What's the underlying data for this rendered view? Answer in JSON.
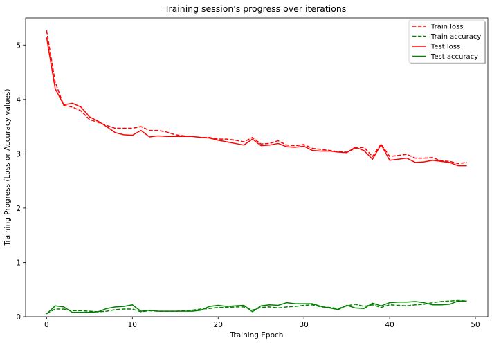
{
  "chart_data": {
    "type": "line",
    "title": "Training session's progress over iterations",
    "xlabel": "Training Epoch",
    "ylabel": "Training Progress (Loss or Accuracy values)",
    "xlim": [
      -2.45,
      51.45
    ],
    "ylim": [
      0,
      5.5
    ],
    "xticks": [
      0,
      10,
      20,
      30,
      40,
      50
    ],
    "yticks": [
      0,
      1,
      2,
      3,
      4,
      5
    ],
    "legend_position": "top-right",
    "x": [
      0,
      1,
      2,
      3,
      4,
      5,
      6,
      7,
      8,
      9,
      10,
      11,
      12,
      13,
      14,
      15,
      16,
      17,
      18,
      19,
      20,
      21,
      22,
      23,
      24,
      25,
      26,
      27,
      28,
      29,
      30,
      31,
      32,
      33,
      34,
      35,
      36,
      37,
      38,
      39,
      40,
      41,
      42,
      43,
      44,
      45,
      46,
      47,
      48,
      49
    ],
    "series": [
      {
        "name": "Train loss",
        "color": "#ff0000",
        "style": "dashed",
        "values": [
          5.27,
          4.32,
          3.89,
          3.86,
          3.79,
          3.63,
          3.58,
          3.52,
          3.47,
          3.47,
          3.47,
          3.5,
          3.43,
          3.43,
          3.4,
          3.35,
          3.33,
          3.32,
          3.3,
          3.3,
          3.27,
          3.27,
          3.25,
          3.22,
          3.3,
          3.18,
          3.19,
          3.24,
          3.16,
          3.15,
          3.17,
          3.1,
          3.08,
          3.06,
          3.04,
          3.03,
          3.1,
          3.12,
          2.95,
          3.18,
          2.95,
          2.97,
          2.99,
          2.92,
          2.92,
          2.93,
          2.87,
          2.86,
          2.82,
          2.84
        ]
      },
      {
        "name": "Train accuracy",
        "color": "#008000",
        "style": "dashed",
        "values": [
          0.06,
          0.14,
          0.14,
          0.11,
          0.11,
          0.1,
          0.09,
          0.1,
          0.13,
          0.14,
          0.14,
          0.09,
          0.11,
          0.1,
          0.1,
          0.1,
          0.11,
          0.12,
          0.14,
          0.15,
          0.17,
          0.17,
          0.18,
          0.18,
          0.12,
          0.17,
          0.18,
          0.16,
          0.18,
          0.19,
          0.21,
          0.22,
          0.18,
          0.17,
          0.15,
          0.2,
          0.23,
          0.19,
          0.22,
          0.17,
          0.22,
          0.21,
          0.2,
          0.22,
          0.23,
          0.26,
          0.28,
          0.29,
          0.3,
          0.29
        ]
      },
      {
        "name": "Test loss",
        "color": "#ff0000",
        "style": "solid",
        "values": [
          5.14,
          4.2,
          3.9,
          3.93,
          3.86,
          3.68,
          3.6,
          3.5,
          3.39,
          3.35,
          3.34,
          3.43,
          3.31,
          3.33,
          3.32,
          3.32,
          3.32,
          3.32,
          3.3,
          3.29,
          3.25,
          3.22,
          3.19,
          3.16,
          3.27,
          3.15,
          3.16,
          3.19,
          3.13,
          3.12,
          3.14,
          3.06,
          3.05,
          3.05,
          3.03,
          3.02,
          3.12,
          3.06,
          2.9,
          3.17,
          2.88,
          2.9,
          2.92,
          2.84,
          2.85,
          2.88,
          2.86,
          2.84,
          2.78,
          2.78
        ]
      },
      {
        "name": "Test accuracy",
        "color": "#008000",
        "style": "solid",
        "values": [
          0.05,
          0.2,
          0.18,
          0.08,
          0.08,
          0.08,
          0.09,
          0.15,
          0.18,
          0.19,
          0.22,
          0.1,
          0.12,
          0.1,
          0.1,
          0.1,
          0.1,
          0.1,
          0.12,
          0.19,
          0.21,
          0.19,
          0.2,
          0.21,
          0.09,
          0.2,
          0.22,
          0.21,
          0.26,
          0.24,
          0.24,
          0.24,
          0.19,
          0.16,
          0.13,
          0.21,
          0.16,
          0.15,
          0.25,
          0.2,
          0.26,
          0.27,
          0.27,
          0.28,
          0.26,
          0.22,
          0.22,
          0.23,
          0.29,
          0.29
        ]
      }
    ]
  }
}
